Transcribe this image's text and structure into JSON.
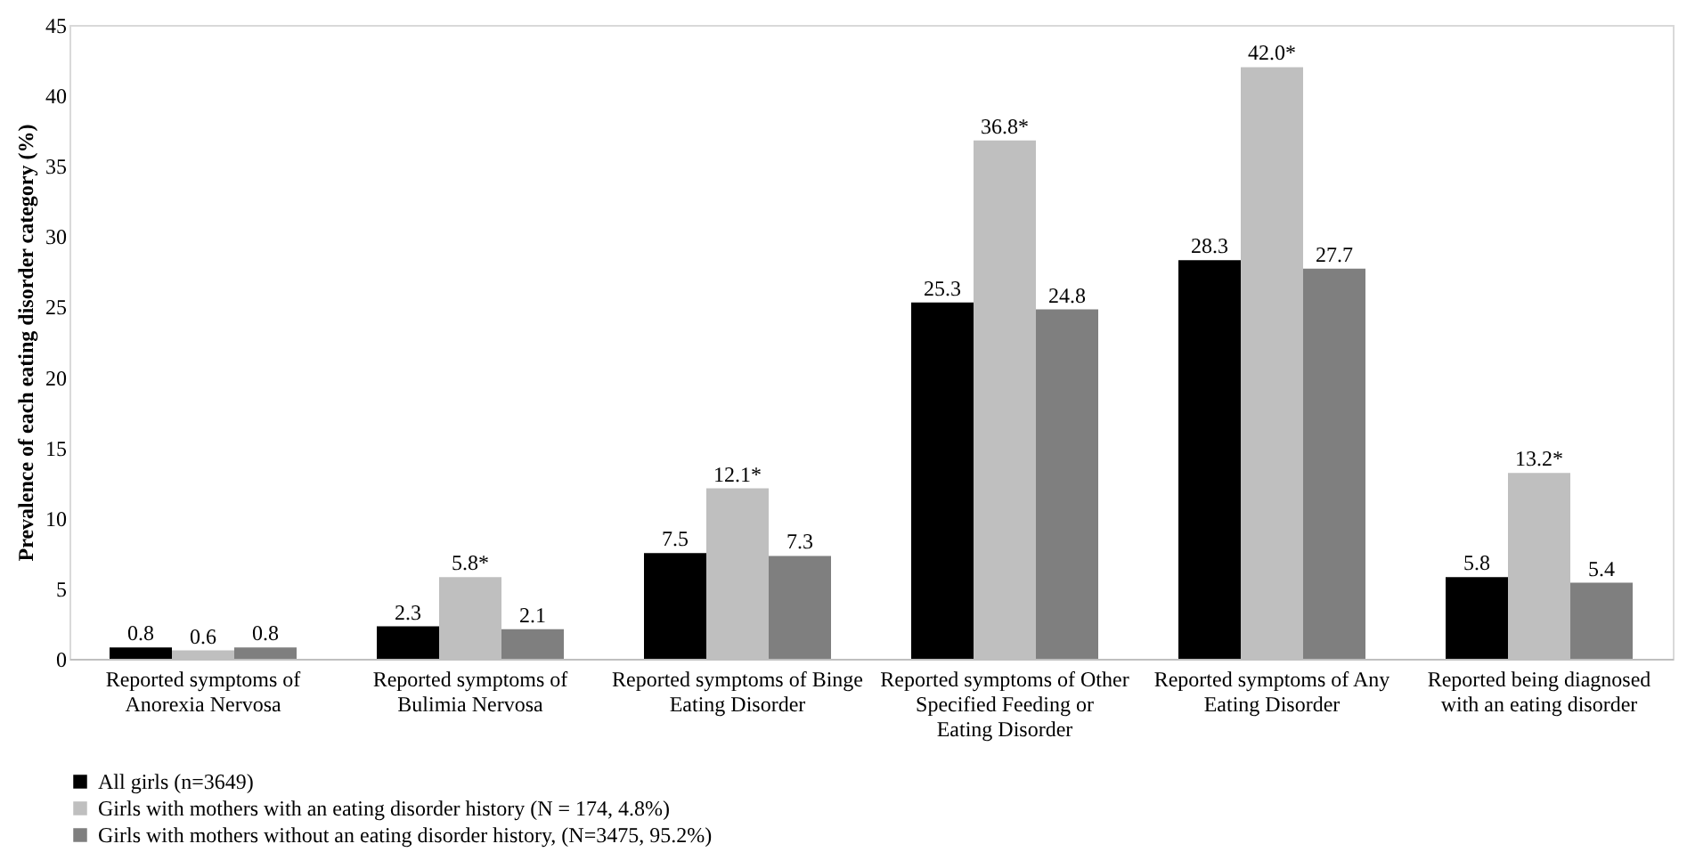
{
  "chart_data": {
    "type": "bar",
    "ylabel": "Prevalence of each eating disorder category (%)",
    "categories": [
      "Reported symptoms of Anorexia Nervosa",
      "Reported symptoms of Bulimia Nervosa",
      "Reported symptoms of Binge Eating Disorder",
      "Reported symptoms of Other Specified Feeding or Eating Disorder",
      "Reported symptoms of Any Eating Disorder",
      "Reported being diagnosed with an eating disorder"
    ],
    "series": [
      {
        "name": "All girls (n=3649)",
        "color": "#000000",
        "values": [
          0.8,
          2.3,
          7.5,
          25.3,
          28.3,
          5.8
        ],
        "value_labels": [
          "0.8",
          "2.3",
          "7.5",
          "25.3",
          "28.3",
          "5.8"
        ]
      },
      {
        "name": "Girls with mothers with an eating disorder history (N = 174, 4.8%)",
        "color": "#bfbfbf",
        "values": [
          0.6,
          5.8,
          12.1,
          36.8,
          42.0,
          13.2
        ],
        "value_labels": [
          "0.6",
          "5.8*",
          "12.1*",
          "36.8*",
          "42.0*",
          "13.2*"
        ]
      },
      {
        "name": "Girls with mothers without an eating disorder history, (N=3475, 95.2%)",
        "color": "#7f7f7f",
        "values": [
          0.8,
          2.1,
          7.3,
          24.8,
          27.7,
          5.4
        ],
        "value_labels": [
          "0.8",
          "2.1",
          "7.3",
          "24.8",
          "27.7",
          "5.4"
        ]
      }
    ],
    "ylim": [
      0,
      45
    ],
    "yticks": [
      0,
      5,
      10,
      15,
      20,
      25,
      30,
      35,
      40,
      45
    ],
    "grid": false,
    "legend": "bottom left"
  }
}
